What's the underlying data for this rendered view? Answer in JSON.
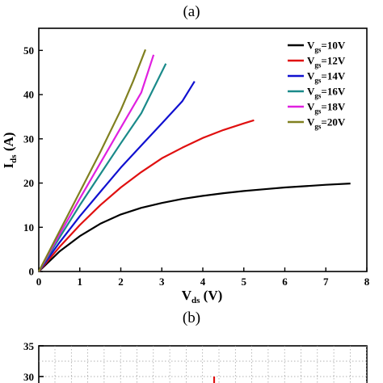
{
  "captions": {
    "top": "(a)",
    "middle": "(b)"
  },
  "chart_data": [
    {
      "type": "line",
      "title": "",
      "xlabel_main": "V",
      "xlabel_sub": "ds",
      "xlabel_unit": " (V)",
      "ylabel_main": "I",
      "ylabel_sub": "ds",
      "ylabel_unit": " (A)",
      "xlim": [
        0,
        8
      ],
      "ylim": [
        0,
        55
      ],
      "xticks": [
        0,
        1,
        2,
        3,
        4,
        5,
        6,
        7,
        8
      ],
      "yticks": [
        0,
        10,
        20,
        30,
        40,
        50
      ],
      "grid": false,
      "legend_position": "top-right",
      "series": [
        {
          "name": "V_gs=10V",
          "legend_main": "V",
          "legend_sub": "gs",
          "legend_tail": "=10V",
          "color": "#000000",
          "x": [
            0,
            0.5,
            1.0,
            1.5,
            2.0,
            2.5,
            3.0,
            3.5,
            4.0,
            4.5,
            5.0,
            5.5,
            6.0,
            6.5,
            7.0,
            7.6
          ],
          "y": [
            0,
            4.5,
            8.0,
            10.8,
            12.9,
            14.4,
            15.5,
            16.4,
            17.1,
            17.7,
            18.2,
            18.6,
            19.0,
            19.3,
            19.6,
            19.9
          ]
        },
        {
          "name": "V_gs=12V",
          "legend_main": "V",
          "legend_sub": "gs",
          "legend_tail": "=12V",
          "color": "#e01010",
          "x": [
            0,
            0.5,
            1.0,
            1.5,
            2.0,
            2.5,
            3.0,
            3.5,
            4.0,
            4.5,
            5.0,
            5.25
          ],
          "y": [
            0,
            5.5,
            10.5,
            15.0,
            19.0,
            22.5,
            25.6,
            28.0,
            30.2,
            32.0,
            33.5,
            34.2
          ]
        },
        {
          "name": "V_gs=14V",
          "legend_main": "V",
          "legend_sub": "gs",
          "legend_tail": "=14V",
          "color": "#1010d0",
          "x": [
            0,
            0.5,
            1.0,
            1.5,
            2.0,
            2.5,
            3.0,
            3.5,
            3.8
          ],
          "y": [
            0,
            6.5,
            12.5,
            18.0,
            23.5,
            28.5,
            33.5,
            38.5,
            43.0
          ]
        },
        {
          "name": "V_gs=16V",
          "legend_main": "V",
          "legend_sub": "gs",
          "legend_tail": "=16V",
          "color": "#1a8a8a",
          "x": [
            0,
            0.5,
            1.0,
            1.5,
            2.0,
            2.5,
            3.1
          ],
          "y": [
            0,
            7.6,
            15.0,
            22.0,
            29.0,
            35.8,
            47.0
          ]
        },
        {
          "name": "V_gs=18V",
          "legend_main": "V",
          "legend_sub": "gs",
          "legend_tail": "=18V",
          "color": "#e020e0",
          "x": [
            0,
            0.5,
            1.0,
            1.5,
            2.0,
            2.5,
            2.8
          ],
          "y": [
            0,
            8.3,
            16.5,
            24.5,
            32.5,
            40.5,
            49.0
          ]
        },
        {
          "name": "V_gs=20V",
          "legend_main": "V",
          "legend_sub": "gs",
          "legend_tail": "=20V",
          "color": "#808020",
          "x": [
            0,
            0.5,
            1.0,
            1.5,
            2.0,
            2.3,
            2.6
          ],
          "y": [
            0,
            9.0,
            18.0,
            27.0,
            36.5,
            43.0,
            50.2
          ]
        }
      ]
    },
    {
      "type": "line",
      "title": "",
      "visible_yticks": [
        35,
        30
      ],
      "trace_color": "#e01010",
      "grid": true
    }
  ]
}
